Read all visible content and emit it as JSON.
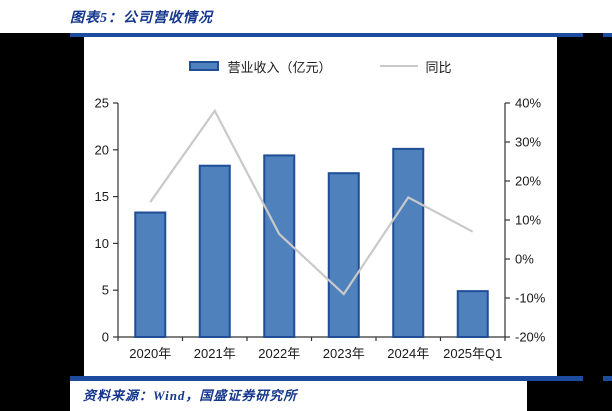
{
  "page": {
    "title": "图表5：公司营收情况",
    "source": "资料来源：Wind，国盛证券研究所"
  },
  "legend": {
    "bar_label": "营业收入（亿元）",
    "line_label": "同比"
  },
  "colors": {
    "navy_text": "#15368d",
    "rule": "#1c4ba0",
    "bar_fill": "#4f81bd",
    "bar_border": "#1f4e96",
    "line": "#c9c9c9",
    "axis": "#333333"
  },
  "chart_data": {
    "type": "bar",
    "subtype": "bar+line combo, dual axis",
    "categories": [
      "2020年",
      "2021年",
      "2022年",
      "2023年",
      "2024年",
      "2025年Q1"
    ],
    "series": [
      {
        "name": "营业收入（亿元）",
        "type": "bar",
        "axis": "left",
        "values": [
          13.3,
          18.3,
          19.4,
          17.5,
          20.1,
          4.9
        ]
      },
      {
        "name": "同比",
        "type": "line",
        "axis": "right",
        "values": [
          14.6,
          38.0,
          6.4,
          -9.0,
          15.8,
          7.0
        ]
      }
    ],
    "left_axis": {
      "min": 0,
      "max": 25,
      "step": 5,
      "ticks": [
        "0",
        "5",
        "10",
        "15",
        "20",
        "25"
      ]
    },
    "right_axis": {
      "min": -20,
      "max": 40,
      "step": 10,
      "ticks": [
        "-20%",
        "-10%",
        "0%",
        "10%",
        "20%",
        "30%",
        "40%"
      ]
    },
    "title": "图表5：公司营收情况",
    "xlabel": "",
    "ylabel_left": "营业收入（亿元）",
    "ylabel_right": "同比",
    "grid": false,
    "legend_position": "top-center"
  }
}
